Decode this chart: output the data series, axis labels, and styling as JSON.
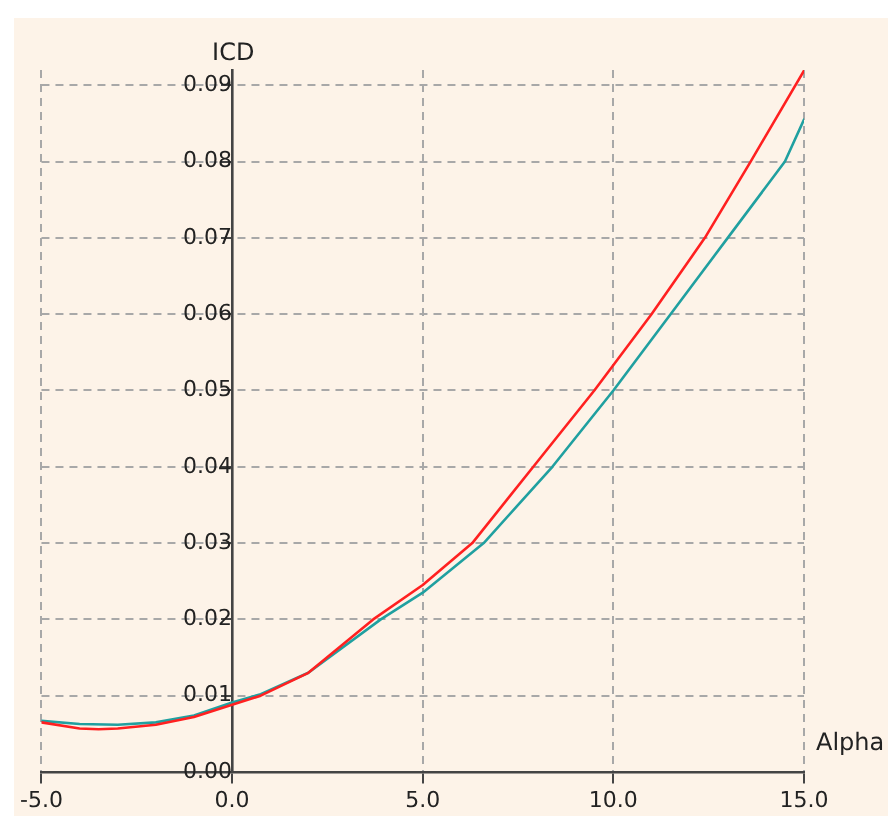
{
  "chart_data": {
    "type": "line",
    "xlabel": "Alpha",
    "ylabel": "ICD",
    "xlim": [
      -5,
      15
    ],
    "ylim": [
      0,
      0.092
    ],
    "xticks": [
      {
        "value": -5,
        "label": "-5.0"
      },
      {
        "value": 0,
        "label": "0.0"
      },
      {
        "value": 5,
        "label": "5.0"
      },
      {
        "value": 10,
        "label": "10.0"
      },
      {
        "value": 15,
        "label": "15.0"
      }
    ],
    "yticks": [
      {
        "value": 0,
        "label": "0.00"
      },
      {
        "value": 0.01,
        "label": "0.01"
      },
      {
        "value": 0.02,
        "label": "0.02"
      },
      {
        "value": 0.03,
        "label": "0.03"
      },
      {
        "value": 0.04,
        "label": "0.04"
      },
      {
        "value": 0.05,
        "label": "0.05"
      },
      {
        "value": 0.06,
        "label": "0.06"
      },
      {
        "value": 0.07,
        "label": "0.07"
      },
      {
        "value": 0.08,
        "label": "0.08"
      },
      {
        "value": 0.09,
        "label": "0.09"
      }
    ],
    "grid": true,
    "legend": false,
    "marker": "none",
    "line_style": "solid",
    "series": [
      {
        "color": "#ff2020",
        "x": [
          -5,
          -4,
          -3.5,
          -3,
          -2,
          -1,
          0,
          0.75,
          2,
          3.7,
          5,
          6.3,
          7.9,
          9.5,
          11,
          12.4,
          13.6,
          15
        ],
        "values": [
          0.0065,
          0.0057,
          0.0056,
          0.0057,
          0.0062,
          0.0072,
          0.0088,
          0.01,
          0.013,
          0.02,
          0.0245,
          0.03,
          0.04,
          0.05,
          0.06,
          0.07,
          0.08,
          0.0919
        ]
      },
      {
        "color": "#20a0a0",
        "x": [
          -5,
          -4,
          -3,
          -2,
          -1,
          0,
          0.75,
          2,
          3.9,
          5,
          6.6,
          8.4,
          10,
          11.5,
          13,
          14.5,
          15
        ],
        "values": [
          0.0067,
          0.0063,
          0.0062,
          0.0065,
          0.0074,
          0.0091,
          0.0102,
          0.013,
          0.02,
          0.0235,
          0.03,
          0.04,
          0.05,
          0.06,
          0.07,
          0.08,
          0.0855
        ]
      }
    ]
  }
}
